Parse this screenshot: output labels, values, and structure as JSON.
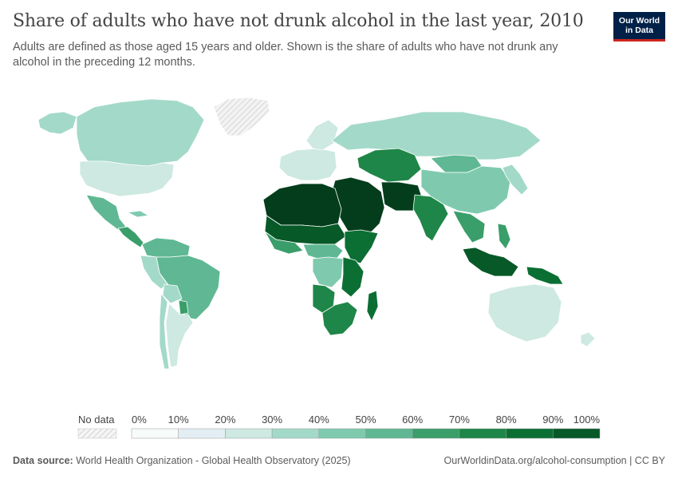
{
  "title": "Share of adults who have not drunk alcohol in the last year, 2010",
  "subtitle": "Adults are defined as those aged 15 years and older. Shown is the share of adults who have not drunk any alcohol in the preceding 12 months.",
  "logo": {
    "line1": "Our World",
    "line2": "in Data"
  },
  "legend": {
    "no_data_label": "No data",
    "ticks": [
      "0%",
      "10%",
      "20%",
      "30%",
      "40%",
      "50%",
      "60%",
      "70%",
      "80%",
      "90%",
      "100%"
    ],
    "colors": [
      "#f7fbf9",
      "#e3eef4",
      "#cde9e1",
      "#a3d9c8",
      "#7fcaaf",
      "#5fb893",
      "#3a9e6a",
      "#1e8648",
      "#0b6f34",
      "#075928",
      "#033d1c"
    ]
  },
  "colors": {
    "water": "#ffffff",
    "border": "#ffffff",
    "no_data": "#e6e6e6"
  },
  "map_regions": [
    {
      "name": "Canada",
      "value": 27,
      "key": "canada"
    },
    {
      "name": "Alaska",
      "value": 27,
      "key": "alaska"
    },
    {
      "name": "Greenland",
      "value": null,
      "key": "greenland"
    },
    {
      "name": "United States",
      "value": 21,
      "key": "usa"
    },
    {
      "name": "Mexico",
      "value": 52,
      "key": "mexico"
    },
    {
      "name": "Central America",
      "value": 58,
      "key": "central_america"
    },
    {
      "name": "Cuba",
      "value": 42,
      "key": "cuba"
    },
    {
      "name": "Colombia and Venezuela",
      "value": 48,
      "key": "colombia"
    },
    {
      "name": "Brazil",
      "value": 46,
      "key": "brazil"
    },
    {
      "name": "Peru",
      "value": 32,
      "key": "peru"
    },
    {
      "name": "Bolivia",
      "value": 30,
      "key": "bolivia"
    },
    {
      "name": "Paraguay",
      "value": 55,
      "key": "paraguay"
    },
    {
      "name": "Argentina",
      "value": 24,
      "key": "argentina"
    },
    {
      "name": "Chile",
      "value": 28,
      "key": "chile"
    },
    {
      "name": "Europe",
      "value": 18,
      "key": "europe"
    },
    {
      "name": "Scandinavia",
      "value": 16,
      "key": "scandinavia"
    },
    {
      "name": "Russia",
      "value": 30,
      "key": "russia"
    },
    {
      "name": "Central Asia",
      "value": 72,
      "key": "central_asia"
    },
    {
      "name": "Mongolia",
      "value": 48,
      "key": "mongolia"
    },
    {
      "name": "China",
      "value": 35,
      "key": "china"
    },
    {
      "name": "Middle East",
      "value": 95,
      "key": "middle_east"
    },
    {
      "name": "Iran and Afghanistan",
      "value": 97,
      "key": "iran"
    },
    {
      "name": "India",
      "value": 68,
      "key": "india"
    },
    {
      "name": "Southeast Asia",
      "value": 55,
      "key": "se_asia"
    },
    {
      "name": "Japan and Korea",
      "value": 28,
      "key": "japan"
    },
    {
      "name": "North Africa",
      "value": 96,
      "key": "north_africa"
    },
    {
      "name": "Sahel",
      "value": 88,
      "key": "sahel"
    },
    {
      "name": "West Africa coast",
      "value": 62,
      "key": "west_africa"
    },
    {
      "name": "Horn of Africa",
      "value": 82,
      "key": "horn"
    },
    {
      "name": "Central Africa",
      "value": 48,
      "key": "central_africa"
    },
    {
      "name": "DR Congo",
      "value": 40,
      "key": "drc"
    },
    {
      "name": "East Africa",
      "value": 75,
      "key": "east_africa"
    },
    {
      "name": "Angola and Zambia",
      "value": 72,
      "key": "angola"
    },
    {
      "name": "Southern Africa",
      "value": 74,
      "key": "southern_africa"
    },
    {
      "name": "Madagascar",
      "value": 76,
      "key": "madagascar"
    },
    {
      "name": "Indonesia",
      "value": 93,
      "key": "indonesia"
    },
    {
      "name": "Papua New Guinea",
      "value": 82,
      "key": "png"
    },
    {
      "name": "Philippines",
      "value": 62,
      "key": "philippines"
    },
    {
      "name": "Australia",
      "value": 15,
      "key": "australia"
    },
    {
      "name": "New Zealand",
      "value": 20,
      "key": "new_zealand"
    }
  ],
  "footer": {
    "source_label": "Data source:",
    "source_text": "World Health Organization - Global Health Observatory (2025)",
    "right_text": "OurWorldinData.org/alcohol-consumption | CC BY"
  }
}
